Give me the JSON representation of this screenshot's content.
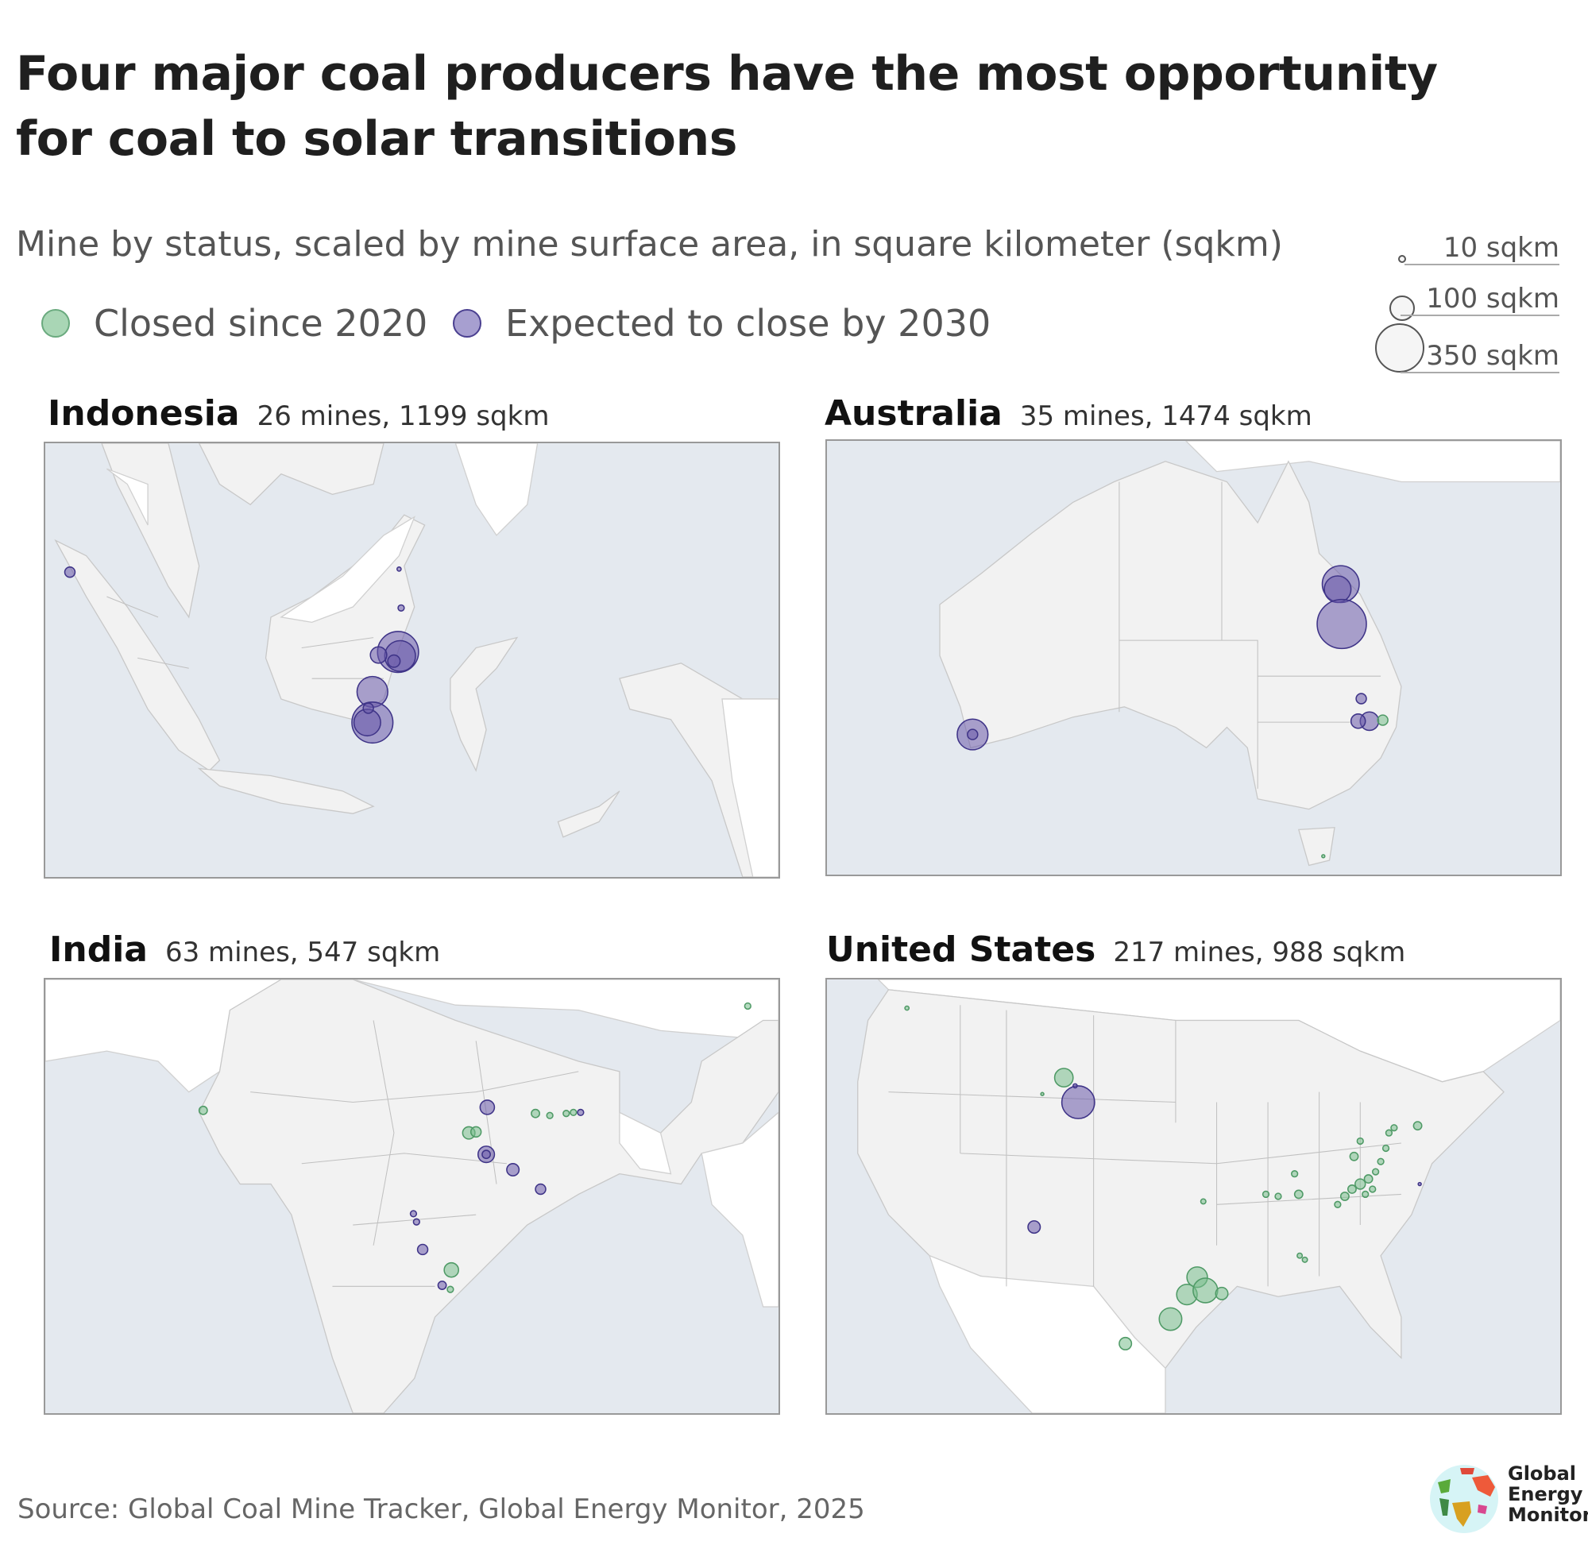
{
  "title": "Four major coal producers have the most opportunity for coal to solar transitions",
  "subtitle": "Mine by status, scaled by mine surface area, in square kilometer (sqkm)",
  "legend": {
    "closed": {
      "label": "Closed since 2020",
      "color": "#8fc9a0"
    },
    "expected": {
      "label": "Expected to close by 2030",
      "color": "#9a90c8"
    }
  },
  "size_legend": [
    "10 sqkm",
    "100 sqkm",
    "350 sqkm"
  ],
  "panels": [
    {
      "country": "Indonesia",
      "summary": "26 mines, 1199 sqkm"
    },
    {
      "country": "Australia",
      "summary": "35 mines, 1474 sqkm"
    },
    {
      "country": "India",
      "summary": "63 mines, 547 sqkm"
    },
    {
      "country": "United States",
      "summary": "217 mines, 988 sqkm"
    }
  ],
  "chart_data": {
    "type": "scatter",
    "title": "Four major coal producers have the most opportunity for coal to solar transitions",
    "legend_entries": [
      "Closed since 2020",
      "Expected to close by 2030"
    ],
    "size_scale_sqkm": [
      10,
      100,
      350
    ],
    "countries": [
      {
        "name": "Indonesia",
        "mines": 26,
        "area_sqkm": 1199
      },
      {
        "name": "Australia",
        "mines": 35,
        "area_sqkm": 1474
      },
      {
        "name": "India",
        "mines": 63,
        "area_sqkm": 547
      },
      {
        "name": "United States",
        "mines": 217,
        "area_sqkm": 988
      }
    ]
  },
  "source": "Source: Global Coal Mine Tracker, Global Energy Monitor, 2025",
  "logo": "Global Energy Monitor"
}
